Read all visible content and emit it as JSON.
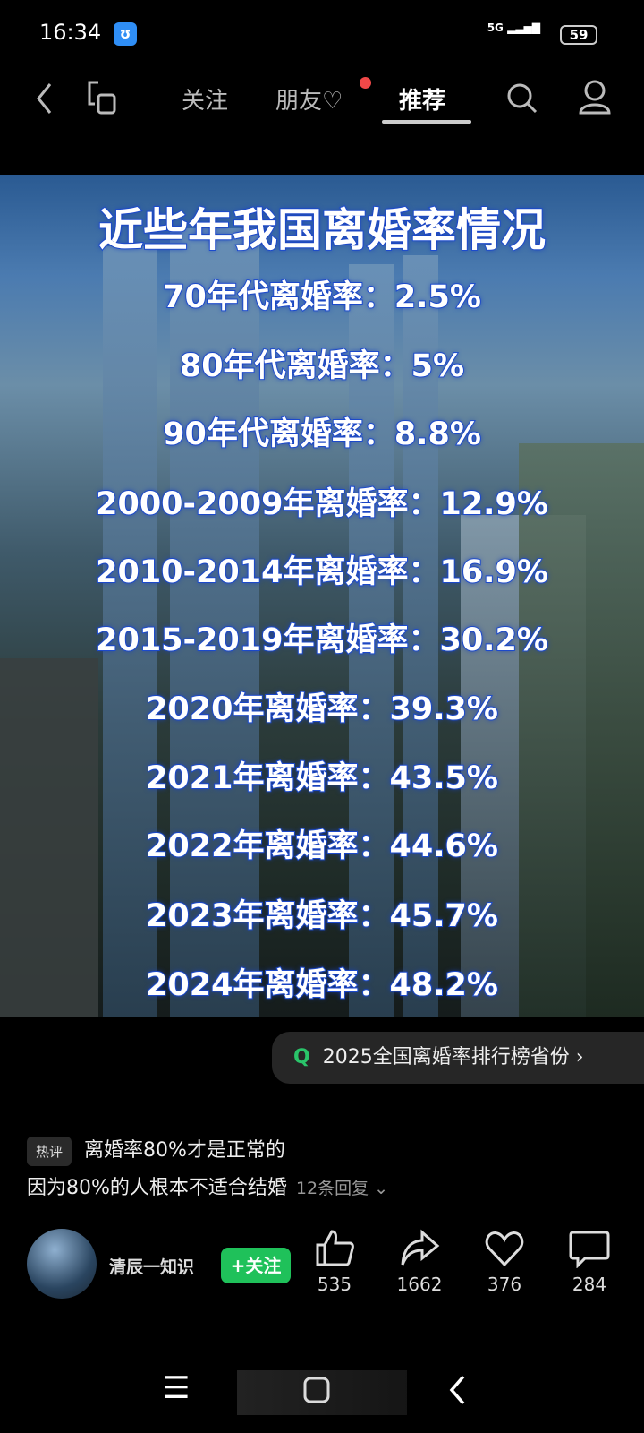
{
  "status": {
    "time": "16:34",
    "network": "5G",
    "battery": "59"
  },
  "nav": {
    "tabs": [
      {
        "label": "关注"
      },
      {
        "label": "朋友♡"
      },
      {
        "label": "推荐"
      }
    ],
    "active": "推荐"
  },
  "video": {
    "title": "近些年我国离婚率情况",
    "rows": [
      "70年代离婚率：2.5%",
      "80年代离婚率：5%",
      "90年代离婚率：8.8%",
      "2000-2009年离婚率：12.9%",
      "2010-2014年离婚率：16.9%",
      "2015-2019年离婚率：30.2%",
      "2020年离婚率：39.3%",
      "2021年离婚率：43.5%",
      "2022年离婚率：44.6%",
      "2023年离婚率：45.7%",
      "2024年离婚率：48.2%"
    ]
  },
  "search_suggestion": "2025全国离婚率排行榜省份",
  "comment": {
    "badge": "热评",
    "line1": "离婚率80%才是正常的",
    "line2": "因为80%的人根本不适合结婚",
    "replies": "12条回复"
  },
  "author": {
    "name": "清辰一知识",
    "follow_label": "+关注"
  },
  "actions": {
    "likes": "535",
    "shares": "1662",
    "favorites": "376",
    "comments": "284"
  },
  "colors": {
    "accent": "#1fc15a",
    "notify": "#f04848"
  }
}
